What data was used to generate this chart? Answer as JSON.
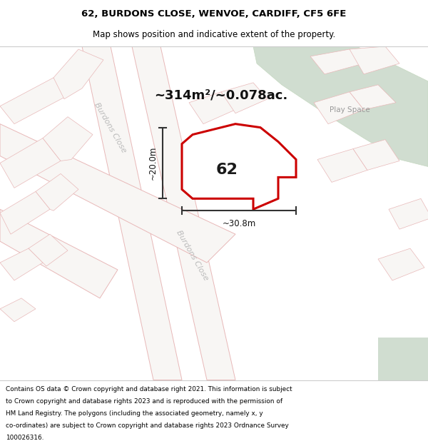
{
  "title_line1": "62, BURDONS CLOSE, WENVOE, CARDIFF, CF5 6FE",
  "title_line2": "Map shows position and indicative extent of the property.",
  "footer_lines": [
    "Contains OS data © Crown copyright and database right 2021. This information is subject",
    "to Crown copyright and database rights 2023 and is reproduced with the permission of",
    "HM Land Registry. The polygons (including the associated geometry, namely x, y",
    "co-ordinates) are subject to Crown copyright and database rights 2023 Ordnance Survey",
    "100026316."
  ],
  "play_space_label": "Play Space",
  "area_label": "~314m²/~0.078ac.",
  "width_label": "~30.8m",
  "height_label": "~20.0m",
  "plot_number": "62",
  "road_label_upper": "Burdons Close",
  "road_label_lower": "Burdons Close",
  "map_bg": "#f2f0ee",
  "road_fill": "#f8f6f4",
  "road_line": "#e8b8b8",
  "parcel_line": "#e8b8b8",
  "green_fill": "#d0ddd0",
  "green_stroke": "#c5d8c0",
  "plot_stroke": "#cc0000",
  "plot_fill": "none",
  "dim_color": "#333333",
  "road_label_color": "#bbbbbb",
  "play_space_color": "#999999",
  "white": "#ffffff",
  "title_fontsize": 9.5,
  "subtitle_fontsize": 8.5,
  "area_fontsize": 13.0,
  "plot_num_fontsize": 16,
  "dim_fontsize": 8.5,
  "road_label_fontsize": 8.0,
  "footer_fontsize": 6.4
}
